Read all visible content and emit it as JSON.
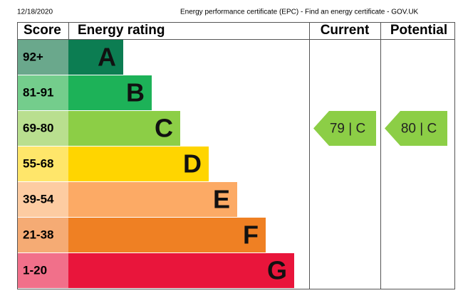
{
  "header": {
    "date": "12/18/2020",
    "title": "Energy performance certificate (EPC) - Find an energy certificate - GOV.UK"
  },
  "table": {
    "columns": [
      "Score",
      "Energy rating",
      "Current",
      "Potential"
    ],
    "bands": [
      {
        "score": "92+",
        "rating": "A",
        "color": "#0c7d52",
        "tint": "#6aa88c"
      },
      {
        "score": "81-91",
        "rating": "B",
        "color": "#1db258",
        "tint": "#74cd8c"
      },
      {
        "score": "69-80",
        "rating": "C",
        "color": "#8cce46",
        "tint": "#b9df8f"
      },
      {
        "score": "55-68",
        "rating": "D",
        "color": "#ffd500",
        "tint": "#ffe66a"
      },
      {
        "score": "39-54",
        "rating": "E",
        "color": "#fcaa65",
        "tint": "#fdcca2"
      },
      {
        "score": "21-38",
        "rating": "F",
        "color": "#ef8023",
        "tint": "#f5ab74"
      },
      {
        "score": "1-20",
        "rating": "G",
        "color": "#e9153b",
        "tint": "#f1708a"
      }
    ],
    "current": {
      "label": "79 | C",
      "band": 2,
      "color": "#8cce46"
    },
    "potential": {
      "label": "80 | C",
      "band": 2,
      "color": "#8cce46"
    }
  }
}
